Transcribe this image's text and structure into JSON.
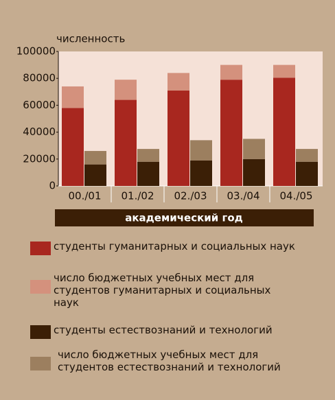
{
  "chart_data": {
    "type": "bar",
    "y_label": "численность",
    "x_label": "академический год",
    "categories": [
      "00./01",
      "01./02",
      "02./03",
      "03./04",
      "04./05"
    ],
    "series": [
      {
        "name": "студенты гуманитарных и социальных наук",
        "color": "#a8271f",
        "values": [
          58000,
          64000,
          71000,
          79000,
          80500
        ]
      },
      {
        "name": "число бюджетных учебных  мест для студентов гуманитарных и социальных наук",
        "color": "#d4917d",
        "values": [
          16000,
          15000,
          13000,
          11000,
          9500
        ]
      },
      {
        "name": "студенты естествознаний и технологий",
        "color": "#3b1f06",
        "values": [
          16000,
          18000,
          19000,
          20000,
          18000
        ]
      },
      {
        "name": "число бюджетных учебных мест для студентов естествознаний и технологий",
        "color": "#9c7f5f",
        "values": [
          10000,
          9500,
          15000,
          15000,
          9500
        ]
      }
    ],
    "ylim": [
      0,
      100000
    ],
    "yticks": [
      0,
      20000,
      40000,
      60000,
      80000,
      100000
    ]
  }
}
